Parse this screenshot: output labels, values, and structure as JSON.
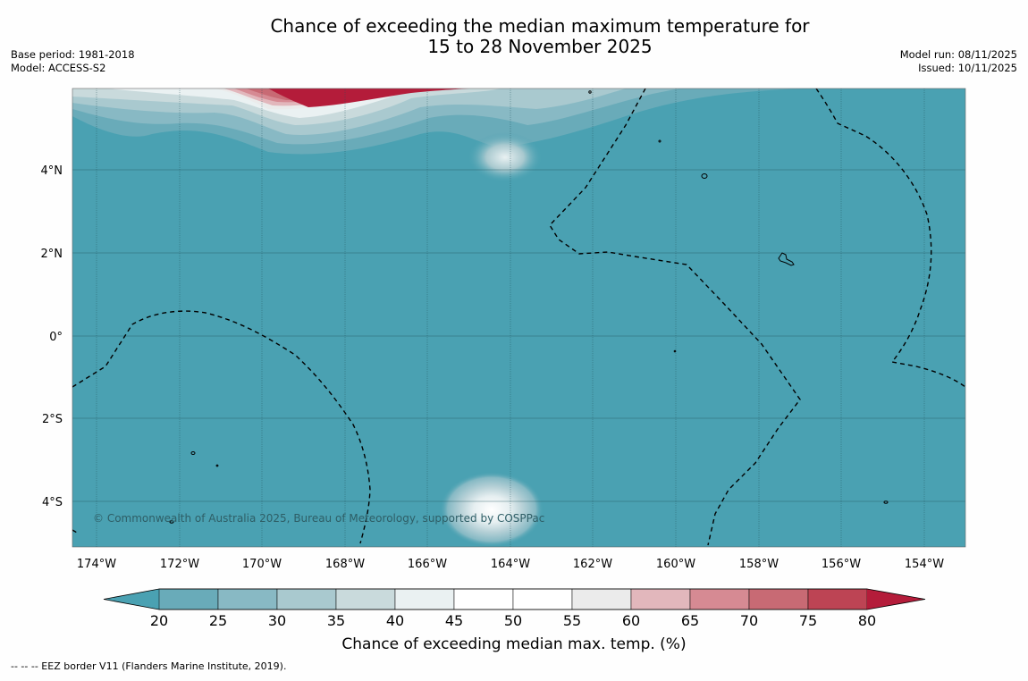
{
  "title": {
    "line1": "Chance of exceeding the median maximum temperature for",
    "line2": "15 to 28 November 2025"
  },
  "meta": {
    "base_period": "Base period: 1981-2018",
    "model": "Model: ACCESS-S2",
    "model_run": "Model run: 08/11/2025",
    "issued": "Issued: 10/11/2025"
  },
  "map": {
    "ocean_color": "#4aa1b2",
    "lon_ticks": [
      "174°W",
      "172°W",
      "170°W",
      "168°W",
      "166°W",
      "164°W",
      "162°W",
      "160°W",
      "158°W",
      "156°W",
      "154°W"
    ],
    "lat_ticks": [
      "4°N",
      "2°N",
      "0°",
      "2°S",
      "4°S"
    ],
    "copyright": "© Commonwealth of Australia 2025, Bureau of Meteorology, supported by COSPPac"
  },
  "colorbar": {
    "title": "Chance of exceeding median max. temp. (%)",
    "ticks": [
      "20",
      "25",
      "30",
      "35",
      "40",
      "45",
      "50",
      "55",
      "60",
      "65",
      "70",
      "75",
      "80"
    ],
    "colors": [
      "#69abb9",
      "#88b9c4",
      "#a9c9cf",
      "#c9dadc",
      "#eaf1f2",
      "#ffffff",
      "#ffffff",
      "#ebebeb",
      "#e2b7bc",
      "#d68a93",
      "#c86a74",
      "#bd4454"
    ],
    "under_color": "#4aa1b2",
    "over_color": "#b41c3a"
  },
  "footer": "-- -- -- EEZ border V11 (Flanders Marine Institute, 2019)."
}
